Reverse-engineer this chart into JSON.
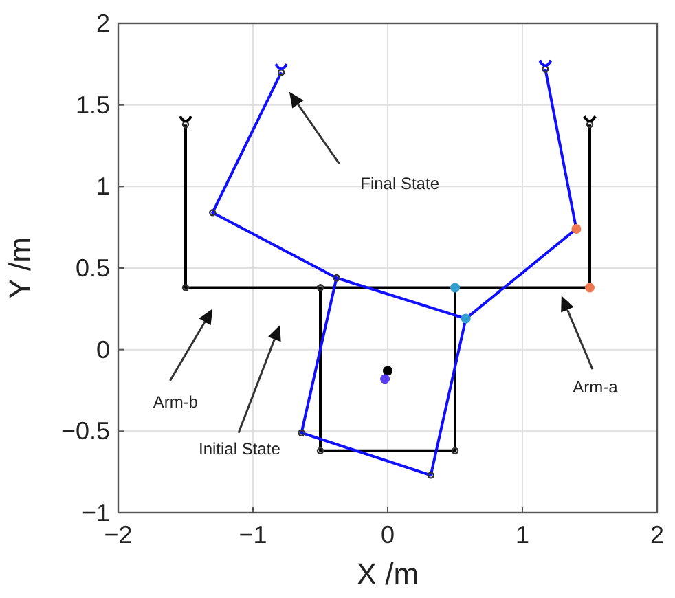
{
  "chart_data": {
    "type": "line",
    "xlabel": "X /m",
    "ylabel": "Y /m",
    "xlim": [
      -2,
      2
    ],
    "ylim": [
      -1,
      2
    ],
    "xticks": [
      -2,
      -1,
      0,
      1,
      2
    ],
    "yticks": [
      -1,
      -0.5,
      0,
      0.5,
      1,
      1.5,
      2
    ],
    "grid": true,
    "marker": "circle",
    "line_style": "solid",
    "series": [
      {
        "color": "#000000",
        "x": [
          -1.5,
          -1.5,
          -0.5,
          0.5,
          1.5,
          1.5
        ],
        "values": [
          1.38,
          0.38,
          0.38,
          0.38,
          0.38,
          1.38
        ]
      },
      {
        "color": "#000000",
        "x": [
          -0.5,
          -0.5,
          0.5,
          0.5
        ],
        "values": [
          0.38,
          -0.62,
          -0.62,
          0.38
        ]
      },
      {
        "color": "#1010ff",
        "x": [
          -0.79,
          -1.3,
          -0.38,
          0.58,
          1.4,
          1.17
        ],
        "values": [
          1.7,
          0.84,
          0.44,
          0.19,
          0.74,
          1.72
        ]
      },
      {
        "color": "#1010ff",
        "x": [
          -0.38,
          -0.64,
          0.32,
          0.58
        ],
        "values": [
          0.44,
          -0.51,
          -0.77,
          0.19
        ]
      },
      {
        "type": "scatter",
        "color": "#f07850",
        "x": [
          1.5,
          1.4
        ],
        "values": [
          0.38,
          0.74
        ]
      },
      {
        "type": "scatter",
        "color": "#30a0d0",
        "x": [
          0.5,
          0.58
        ],
        "values": [
          0.38,
          0.19
        ]
      },
      {
        "type": "scatter",
        "color": "#000000",
        "x": [
          0
        ],
        "values": [
          -0.13
        ]
      },
      {
        "type": "scatter",
        "color": "#5a3cf0",
        "x": [
          -0.02
        ],
        "values": [
          -0.18
        ]
      }
    ],
    "annotations": [
      "Final State",
      "Arm-b",
      "Initial State",
      "Arm-a"
    ]
  }
}
